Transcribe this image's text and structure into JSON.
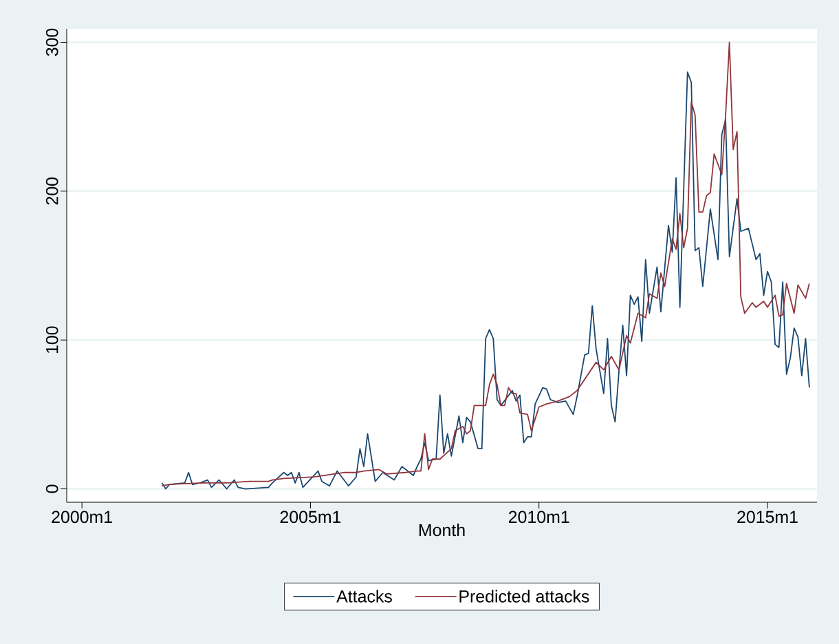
{
  "chart_data": {
    "type": "line",
    "xlabel": "Month",
    "xlim": [
      "1999-09",
      "2016-02"
    ],
    "ylim": [
      -9,
      309
    ],
    "xticks": [
      {
        "value": "2000-01",
        "label": "2000m1"
      },
      {
        "value": "2005-01",
        "label": "2005m1"
      },
      {
        "value": "2010-01",
        "label": "2010m1"
      },
      {
        "value": "2015-01",
        "label": "2015m1"
      }
    ],
    "yticks": [
      0,
      100,
      200,
      300
    ],
    "grid": "y",
    "legend": "bottom",
    "series": [
      {
        "name": "Attacks",
        "color": "#1a476f",
        "x": [
          "2001-10",
          "2001-11",
          "2001-12",
          "2002-04",
          "2002-05",
          "2002-06",
          "2002-08",
          "2002-10",
          "2002-11",
          "2003-01",
          "2003-03",
          "2003-05",
          "2003-06",
          "2003-08",
          "2004-02",
          "2004-03",
          "2004-06",
          "2004-07",
          "2004-08",
          "2004-09",
          "2004-10",
          "2004-11",
          "2005-03",
          "2005-04",
          "2005-06",
          "2005-08",
          "2005-11",
          "2006-01",
          "2006-02",
          "2006-03",
          "2006-04",
          "2006-06",
          "2006-08",
          "2006-11",
          "2007-01",
          "2007-04",
          "2007-05",
          "2007-06",
          "2007-07",
          "2007-08",
          "2007-10",
          "2007-11",
          "2007-12",
          "2008-01",
          "2008-02",
          "2008-04",
          "2008-05",
          "2008-06",
          "2008-07",
          "2008-09",
          "2008-10",
          "2008-11",
          "2008-12",
          "2009-01",
          "2009-02",
          "2009-03",
          "2009-06",
          "2009-07",
          "2009-08",
          "2009-09",
          "2009-10",
          "2009-11",
          "2009-12",
          "2010-02",
          "2010-03",
          "2010-04",
          "2010-06",
          "2010-08",
          "2010-10",
          "2010-11",
          "2011-01",
          "2011-02",
          "2011-03",
          "2011-04",
          "2011-06",
          "2011-07",
          "2011-08",
          "2011-09",
          "2011-10",
          "2011-11",
          "2011-12",
          "2012-01",
          "2012-02",
          "2012-03",
          "2012-04",
          "2012-05",
          "2012-06",
          "2012-08",
          "2012-09",
          "2012-11",
          "2012-12",
          "2013-01",
          "2013-02",
          "2013-04",
          "2013-05",
          "2013-06",
          "2013-07",
          "2013-08",
          "2013-10",
          "2013-12",
          "2014-01",
          "2014-02",
          "2014-03",
          "2014-05",
          "2014-06",
          "2014-08",
          "2014-10",
          "2014-11",
          "2014-12",
          "2015-01",
          "2015-02",
          "2015-03",
          "2015-04",
          "2015-05",
          "2015-06",
          "2015-07",
          "2015-08",
          "2015-09",
          "2015-10",
          "2015-11",
          "2015-12"
        ],
        "values": [
          4,
          0,
          3,
          4,
          11,
          3,
          4,
          6,
          1,
          6,
          0,
          6,
          1,
          0,
          1,
          4,
          11,
          9,
          11,
          4,
          11,
          1,
          12,
          5,
          2,
          12,
          2,
          8,
          27,
          15,
          37,
          5,
          11,
          6,
          15,
          9,
          15,
          20,
          31,
          19,
          20,
          63,
          24,
          37,
          22,
          49,
          31,
          48,
          45,
          27,
          27,
          101,
          107,
          101,
          60,
          56,
          66,
          59,
          63,
          31,
          35,
          35,
          57,
          68,
          67,
          60,
          58,
          59,
          50,
          62,
          90,
          91,
          123,
          94,
          64,
          101,
          56,
          45,
          79,
          110,
          76,
          130,
          124,
          129,
          99,
          154,
          118,
          149,
          119,
          177,
          159,
          209,
          122,
          280,
          273,
          160,
          162,
          136,
          188,
          154,
          238,
          248,
          156,
          195,
          173,
          175,
          154,
          158,
          130,
          146,
          139,
          97,
          95,
          139,
          77,
          88,
          108,
          102,
          76,
          101,
          68
        ]
      },
      {
        "name": "Predicted attacks",
        "color": "#90353b",
        "x": [
          "2001-10",
          "2001-12",
          "2002-09",
          "2003-03",
          "2003-09",
          "2004-02",
          "2004-03",
          "2004-06",
          "2005-02",
          "2005-10",
          "2006-01",
          "2006-03",
          "2006-07",
          "2006-09",
          "2007-02",
          "2007-05",
          "2007-06",
          "2007-07",
          "2007-08",
          "2007-09",
          "2007-11",
          "2008-02",
          "2008-03",
          "2008-05",
          "2008-06",
          "2008-07",
          "2008-08",
          "2008-11",
          "2008-12",
          "2009-01",
          "2009-02",
          "2009-03",
          "2009-04",
          "2009-05",
          "2009-06",
          "2009-07",
          "2009-08",
          "2009-10",
          "2009-11",
          "2010-01",
          "2010-03",
          "2010-06",
          "2010-09",
          "2010-11",
          "2011-04",
          "2011-06",
          "2011-08",
          "2011-10",
          "2011-12",
          "2012-01",
          "2012-03",
          "2012-05",
          "2012-06",
          "2012-08",
          "2012-09",
          "2012-10",
          "2012-12",
          "2013-01",
          "2013-02",
          "2013-03",
          "2013-04",
          "2013-05",
          "2013-06",
          "2013-07",
          "2013-08",
          "2013-09",
          "2013-10",
          "2013-11",
          "2014-01",
          "2014-02",
          "2014-03",
          "2014-04",
          "2014-05",
          "2014-06",
          "2014-07",
          "2014-09",
          "2014-10",
          "2014-12",
          "2015-01",
          "2015-03",
          "2015-04",
          "2015-05",
          "2015-06",
          "2015-08",
          "2015-09",
          "2015-11",
          "2015-12"
        ],
        "values": [
          2,
          3,
          4,
          4,
          5,
          5,
          6,
          7,
          8,
          11,
          11,
          12,
          13,
          10,
          11,
          12,
          12,
          37,
          13,
          20,
          20,
          27,
          39,
          42,
          37,
          39,
          56,
          56,
          70,
          77,
          70,
          56,
          56,
          68,
          64,
          64,
          51,
          50,
          39,
          55,
          57,
          59,
          62,
          66,
          85,
          80,
          89,
          80,
          103,
          98,
          118,
          115,
          131,
          128,
          145,
          136,
          168,
          161,
          185,
          162,
          175,
          260,
          251,
          186,
          186,
          197,
          199,
          225,
          211,
          251,
          300,
          228,
          240,
          129,
          118,
          125,
          122,
          126,
          122,
          130,
          116,
          117,
          138,
          118,
          137,
          128,
          138
        ]
      }
    ]
  }
}
